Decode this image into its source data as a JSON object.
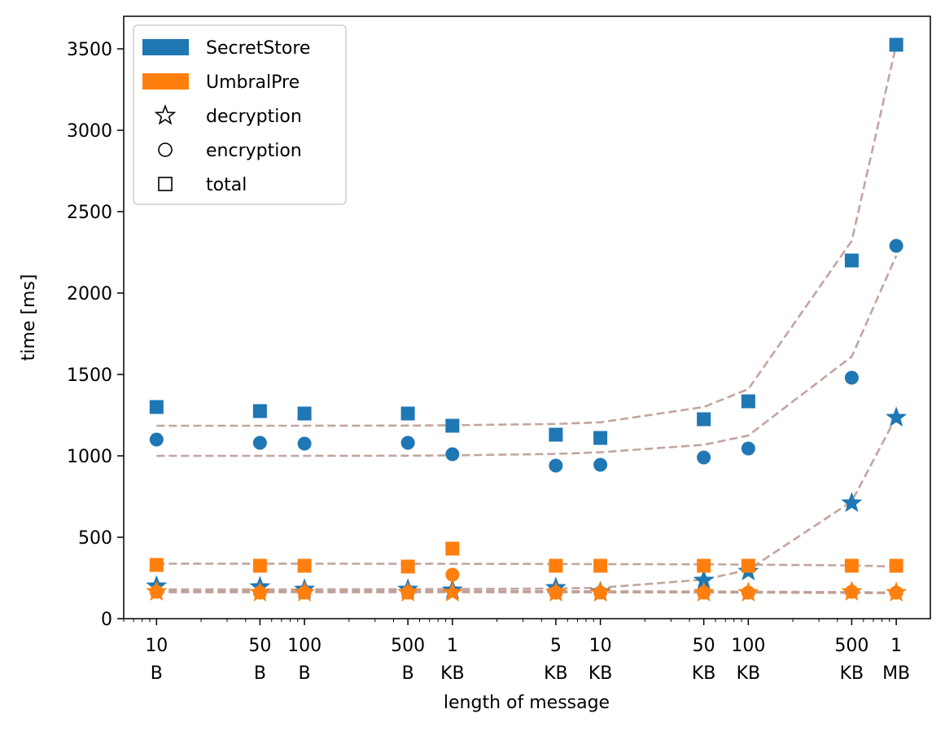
{
  "chart_data": {
    "type": "scatter",
    "xlabel": "length of message",
    "ylabel": "time [ms]",
    "x_scale": "log",
    "xlim_bytes": [
      6,
      1700000
    ],
    "ylim": [
      0,
      3700
    ],
    "x_ticks": [
      {
        "bytes": 10,
        "line1": "10",
        "line2": "B"
      },
      {
        "bytes": 50,
        "line1": "50",
        "line2": "B"
      },
      {
        "bytes": 100,
        "line1": "100",
        "line2": "B"
      },
      {
        "bytes": 500,
        "line1": "500",
        "line2": "B"
      },
      {
        "bytes": 1000,
        "line1": "1",
        "line2": "KB"
      },
      {
        "bytes": 5000,
        "line1": "5",
        "line2": "KB"
      },
      {
        "bytes": 10000,
        "line1": "10",
        "line2": "KB"
      },
      {
        "bytes": 50000,
        "line1": "50",
        "line2": "KB"
      },
      {
        "bytes": 100000,
        "line1": "100",
        "line2": "KB"
      },
      {
        "bytes": 500000,
        "line1": "500",
        "line2": "KB"
      },
      {
        "bytes": 1000000,
        "line1": "1",
        "line2": "MB"
      }
    ],
    "y_ticks": [
      0,
      500,
      1000,
      1500,
      2000,
      2500,
      3000,
      3500
    ],
    "x": [
      10,
      50,
      100,
      500,
      1000,
      5000,
      10000,
      50000,
      100000,
      500000,
      1000000
    ],
    "legend": {
      "position": "upper-left",
      "entries": [
        {
          "label": "SecretStore",
          "kind": "patch",
          "color": "#1f77b4"
        },
        {
          "label": "UmbralPre",
          "kind": "patch",
          "color": "#ff7f0e"
        },
        {
          "label": "decryption",
          "kind": "marker",
          "marker": "star"
        },
        {
          "label": "encryption",
          "kind": "marker",
          "marker": "circle"
        },
        {
          "label": "total",
          "kind": "marker",
          "marker": "square"
        }
      ]
    },
    "series": [
      {
        "system": "SecretStore",
        "measure": "total",
        "marker": "square",
        "color": "#1f77b4",
        "values": [
          1300,
          1275,
          1260,
          1260,
          1185,
          1130,
          1110,
          1225,
          1335,
          2200,
          3525
        ]
      },
      {
        "system": "SecretStore",
        "measure": "encryption",
        "marker": "circle",
        "color": "#1f77b4",
        "values": [
          1100,
          1080,
          1075,
          1080,
          1010,
          940,
          945,
          990,
          1045,
          1480,
          2290
        ]
      },
      {
        "system": "SecretStore",
        "measure": "decryption",
        "marker": "star",
        "color": "#1f77b4",
        "values": [
          200,
          195,
          180,
          180,
          175,
          190,
          165,
          235,
          290,
          710,
          1235
        ]
      },
      {
        "system": "UmbralPre",
        "measure": "total",
        "marker": "square",
        "color": "#ff7f0e",
        "values": [
          330,
          325,
          325,
          320,
          430,
          325,
          325,
          325,
          325,
          325,
          325
        ]
      },
      {
        "system": "UmbralPre",
        "measure": "encryption",
        "marker": "circle",
        "color": "#ff7f0e",
        "values": [
          165,
          160,
          160,
          160,
          270,
          160,
          160,
          160,
          160,
          165,
          160
        ]
      },
      {
        "system": "UmbralPre",
        "measure": "decryption",
        "marker": "star",
        "color": "#ff7f0e",
        "values": [
          165,
          160,
          160,
          160,
          160,
          160,
          160,
          160,
          160,
          165,
          160
        ]
      }
    ],
    "fit_lines": {
      "color": "#bc9b94",
      "style": "dashed",
      "lines": [
        {
          "values": [
            1185,
            1185,
            1185,
            1186,
            1188,
            1196,
            1206,
            1300,
            1410,
            2320,
            3525
          ]
        },
        {
          "values": [
            1000,
            1000,
            1000,
            1001,
            1003,
            1012,
            1022,
            1068,
            1125,
            1610,
            2230
          ]
        },
        {
          "values": [
            180,
            180,
            180,
            181,
            182,
            185,
            190,
            240,
            300,
            720,
            1240
          ]
        },
        {
          "values": [
            338,
            338,
            338,
            337,
            337,
            336,
            335,
            334,
            332,
            327,
            320
          ]
        },
        {
          "values": [
            170,
            170,
            170,
            170,
            170,
            169,
            168,
            167,
            166,
            163,
            160
          ]
        },
        {
          "values": [
            162,
            162,
            162,
            162,
            162,
            162,
            161,
            161,
            160,
            158,
            156
          ]
        }
      ]
    }
  }
}
